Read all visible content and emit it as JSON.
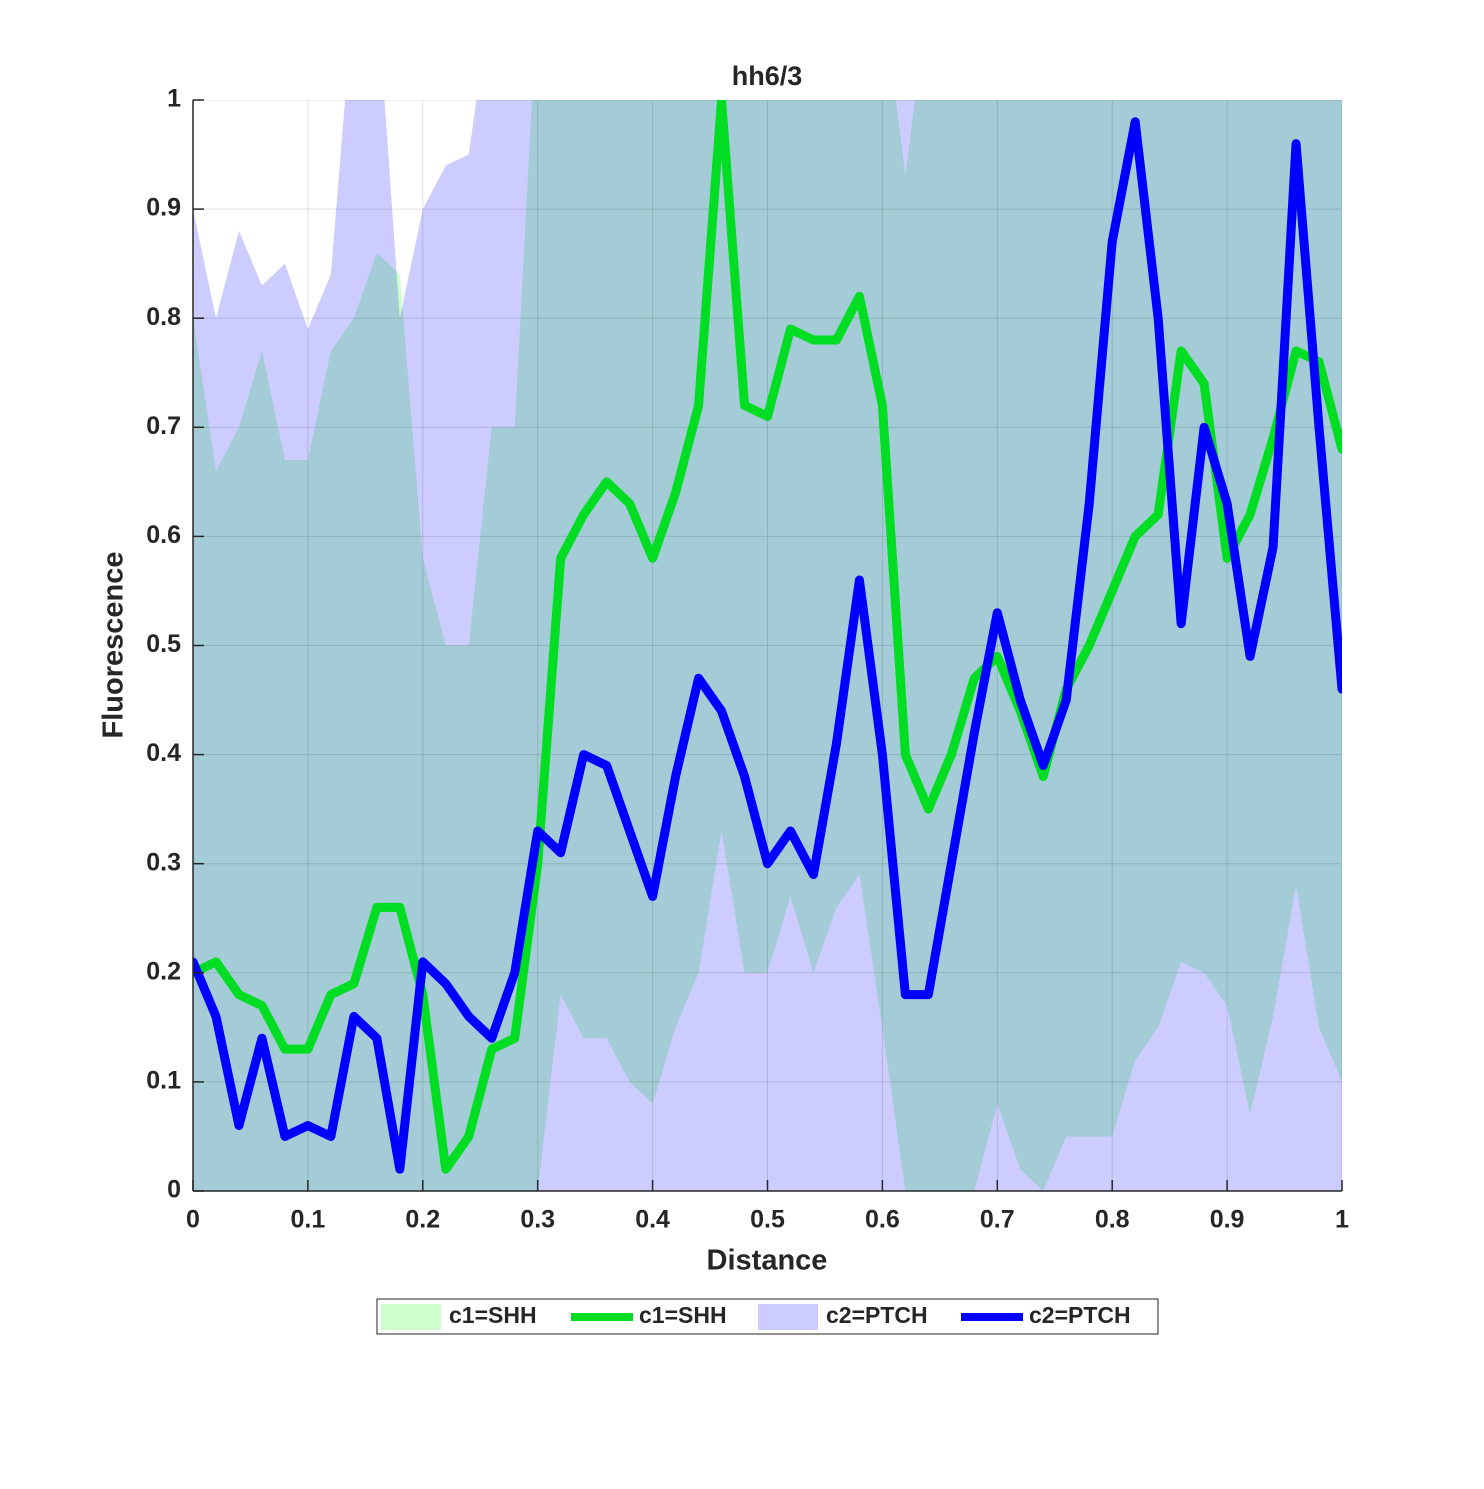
{
  "chart_data": {
    "type": "line",
    "title": "hh6/3",
    "xlabel": "Distance",
    "ylabel": "Fluorescence",
    "x": [
      0,
      0.02,
      0.04,
      0.06,
      0.08,
      0.1,
      0.12,
      0.14,
      0.16,
      0.18,
      0.2,
      0.22,
      0.24,
      0.26,
      0.28,
      0.3,
      0.32,
      0.34,
      0.36,
      0.38,
      0.4,
      0.42,
      0.44,
      0.46,
      0.48,
      0.5,
      0.52,
      0.54,
      0.56,
      0.58,
      0.6,
      0.62,
      0.64,
      0.66,
      0.68,
      0.7,
      0.72,
      0.74,
      0.76,
      0.78,
      0.8,
      0.82,
      0.84,
      0.86,
      0.88,
      0.9,
      0.92,
      0.94,
      0.96,
      0.98,
      1
    ],
    "series": [
      {
        "name": "c1=SHH",
        "kind": "band",
        "color": "#00ff00",
        "lower": [
          0,
          0,
          0,
          0,
          0,
          0,
          0,
          0,
          0,
          0,
          0,
          0,
          0,
          0,
          0,
          0,
          0.18,
          0.14,
          0.14,
          0.1,
          0.08,
          0.15,
          0.2,
          0.33,
          0.2,
          0.2,
          0.27,
          0.2,
          0.26,
          0.29,
          0.15,
          0,
          0,
          0,
          0,
          0.08,
          0.02,
          0,
          0.05,
          0.05,
          0.05,
          0.12,
          0.15,
          0.21,
          0.2,
          0.17,
          0.07,
          0.16,
          0.28,
          0.15,
          0.1
        ],
        "upper": [
          0.8,
          0.66,
          0.7,
          0.77,
          0.67,
          0.67,
          0.77,
          0.8,
          0.86,
          0.84,
          0.58,
          0.5,
          0.5,
          0.7,
          0.7,
          1.1,
          1.1,
          1.1,
          1.1,
          1.1,
          1.1,
          1.1,
          1.1,
          1.1,
          1.1,
          1.1,
          1.1,
          1.1,
          1.1,
          1.1,
          1.1,
          0.93,
          1.1,
          1.1,
          1.1,
          1.1,
          1.1,
          1.1,
          1.1,
          1.1,
          1.1,
          1.1,
          1.1,
          1.1,
          1.1,
          1.1,
          1.1,
          1.1,
          1.1,
          1.1,
          1.1
        ]
      },
      {
        "name": "c1=SHH",
        "kind": "line",
        "color": "#00dd22",
        "values": [
          0.2,
          0.21,
          0.18,
          0.17,
          0.13,
          0.13,
          0.18,
          0.19,
          0.26,
          0.26,
          0.18,
          0.02,
          0.05,
          0.13,
          0.14,
          0.3,
          0.58,
          0.62,
          0.65,
          0.63,
          0.58,
          0.64,
          0.72,
          1.0,
          0.72,
          0.71,
          0.79,
          0.78,
          0.78,
          0.82,
          0.72,
          0.4,
          0.35,
          0.4,
          0.47,
          0.49,
          0.44,
          0.38,
          0.46,
          0.5,
          0.55,
          0.6,
          0.62,
          0.77,
          0.74,
          0.58,
          0.62,
          0.69,
          0.77,
          0.76,
          0.68
        ]
      },
      {
        "name": "c2=PTCH",
        "kind": "band",
        "color": "#0000ff",
        "lower": [
          0,
          0,
          0,
          0,
          0,
          0,
          0,
          0,
          0,
          0,
          0,
          0,
          0,
          0,
          0,
          0,
          0,
          0,
          0,
          0,
          0,
          0,
          0,
          0,
          0,
          0,
          0,
          0,
          0,
          0,
          0,
          0,
          0,
          0,
          0,
          0,
          0,
          0,
          0,
          0,
          0,
          0,
          0,
          0,
          0,
          0,
          0,
          0,
          0,
          0,
          0
        ],
        "upper": [
          0.9,
          0.8,
          0.88,
          0.83,
          0.85,
          0.79,
          0.84,
          1.1,
          1.1,
          0.8,
          0.9,
          0.94,
          0.95,
          1.1,
          1.1,
          1.1,
          1.1,
          1.1,
          1.1,
          1.1,
          1.1,
          1.1,
          1.1,
          1.1,
          1.1,
          1.1,
          1.1,
          1.1,
          1.1,
          1.1,
          1.1,
          1.1,
          1.1,
          1.1,
          1.1,
          1.1,
          1.1,
          1.1,
          1.1,
          1.1,
          1.1,
          1.1,
          1.1,
          1.1,
          1.1,
          1.1,
          1.1,
          1.1,
          1.1,
          1.1,
          1.1
        ]
      },
      {
        "name": "c2=PTCH",
        "kind": "line",
        "color": "#0000ff",
        "values": [
          0.21,
          0.16,
          0.06,
          0.14,
          0.05,
          0.06,
          0.05,
          0.16,
          0.14,
          0.02,
          0.21,
          0.19,
          0.16,
          0.14,
          0.2,
          0.33,
          0.31,
          0.4,
          0.39,
          0.33,
          0.27,
          0.38,
          0.47,
          0.44,
          0.38,
          0.3,
          0.33,
          0.29,
          0.41,
          0.56,
          0.4,
          0.18,
          0.18,
          0.3,
          0.42,
          0.53,
          0.45,
          0.39,
          0.45,
          0.63,
          0.87,
          0.98,
          0.8,
          0.52,
          0.7,
          0.63,
          0.49,
          0.59,
          0.96,
          0.7,
          0.46
        ]
      }
    ],
    "xlim": [
      0,
      1
    ],
    "ylim": [
      0,
      1
    ],
    "xticks": [
      0,
      0.1,
      0.2,
      0.3,
      0.4,
      0.5,
      0.6,
      0.7,
      0.8,
      0.9,
      1
    ],
    "yticks": [
      0,
      0.1,
      0.2,
      0.3,
      0.4,
      0.5,
      0.6,
      0.7,
      0.8,
      0.9,
      1
    ],
    "grid": true,
    "legend": "bottom"
  }
}
